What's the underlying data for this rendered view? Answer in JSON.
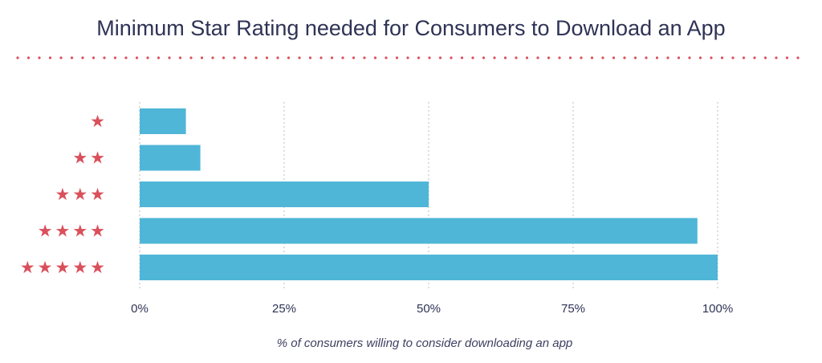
{
  "colors": {
    "bar": "#4fb6d8",
    "star": "#d9505b",
    "dots": "#d9505b",
    "grid": "#c9c9c9",
    "text": "#2e3355"
  },
  "chart_data": {
    "type": "bar",
    "orientation": "horizontal",
    "title": "Minimum Star Rating needed for Consumers to Download an App",
    "xlabel": "% of consumers willing to consider downloading an app",
    "categories": [
      "★",
      "★★",
      "★★★",
      "★★★★",
      "★★★★★"
    ],
    "category_star_counts": [
      1,
      2,
      3,
      4,
      5
    ],
    "values": [
      8,
      10.5,
      50,
      96.5,
      100
    ],
    "xlim": [
      0,
      100
    ],
    "x_ticks": [
      0,
      25,
      50,
      75,
      100
    ],
    "x_tick_labels": [
      "0%",
      "25%",
      "50%",
      "75%",
      "100%"
    ],
    "grid": true,
    "legend": "none"
  }
}
